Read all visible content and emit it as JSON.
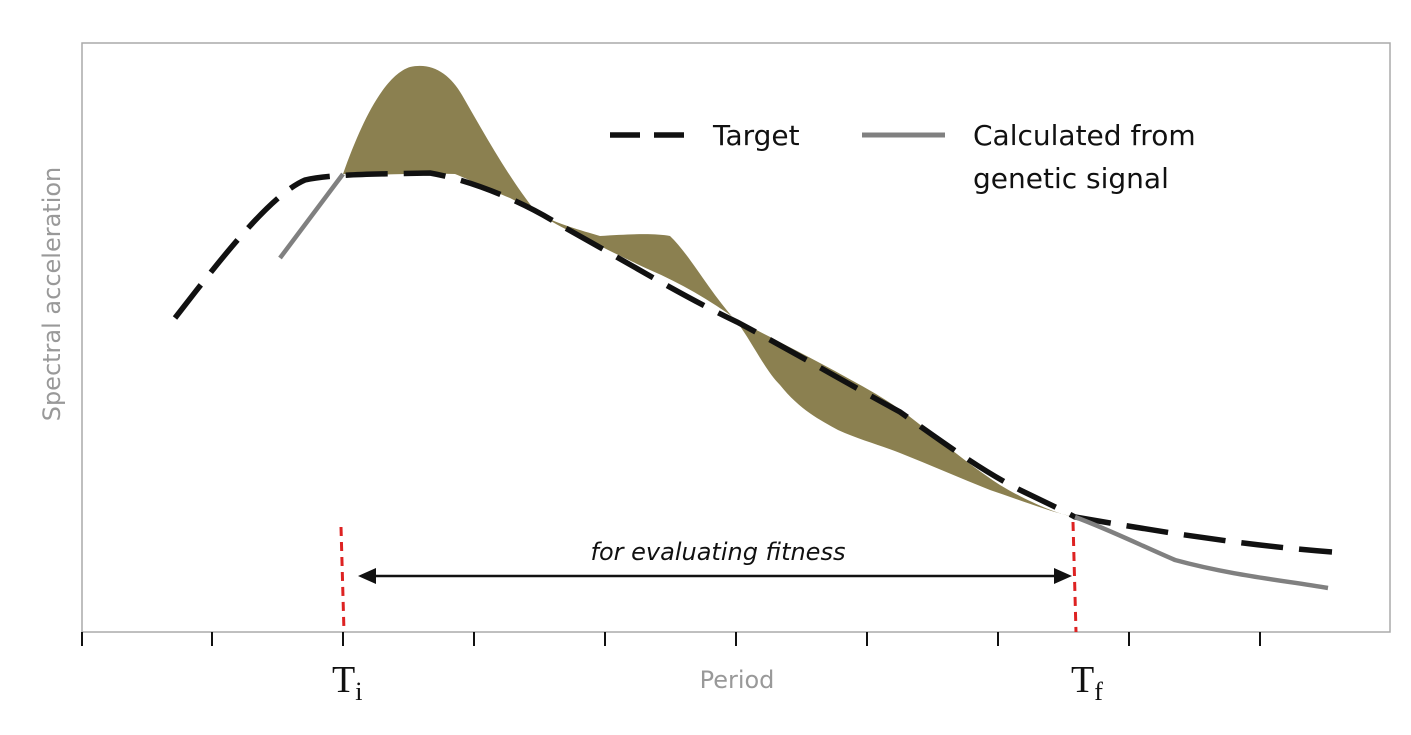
{
  "figure": {
    "legend": {
      "target_label": "Target",
      "calculated_label_line1": "Calculated from",
      "calculated_label_line2": "genetic signal"
    },
    "y_axis_label": "Spectral acceleration",
    "x_axis_label": "Period",
    "span_label": "for evaluating fitness",
    "markers": {
      "start": {
        "main": "T",
        "sub": "i"
      },
      "end": {
        "main": "T",
        "sub": "f"
      }
    },
    "colors": {
      "target": "#111111",
      "calculated": "#808080",
      "fitness_area": "#8b8050",
      "marker": "#dd2222",
      "axis_text": "#999999",
      "frame": "#aaaaaa"
    }
  }
}
